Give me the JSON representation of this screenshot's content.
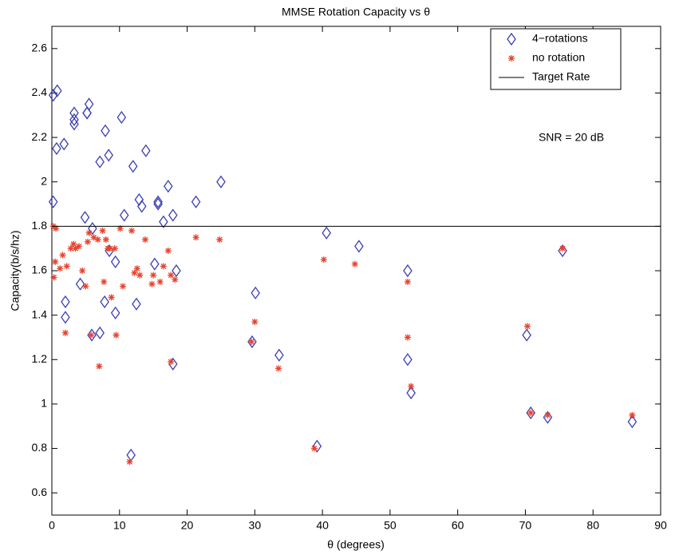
{
  "chart_data": {
    "type": "scatter",
    "title": "MMSE Rotation Capacity vs θ",
    "x_label": "θ (degrees)",
    "y_label": "Capacity(b/s/hz)",
    "annotation": "SNR = 20 dB",
    "xlim": [
      0,
      90
    ],
    "xticks": [
      0,
      10,
      20,
      30,
      40,
      50,
      60,
      70,
      80,
      90
    ],
    "ylim": [
      0.5,
      2.7
    ],
    "yticks": [
      0.6,
      0.8,
      1,
      1.2,
      1.4,
      1.6,
      1.8,
      2,
      2.2,
      2.4,
      2.6
    ],
    "legend": "top-right",
    "series": [
      {
        "name": "4−rotations",
        "color": "#3b3fb3",
        "marker": "diamond",
        "x": [
          0.2,
          0.8,
          0.2,
          0.7,
          1.8,
          3.3,
          3.3,
          3.3,
          5.2,
          5.5,
          7.1,
          7.9,
          8.4,
          10.3,
          12.0,
          13.9,
          12.9,
          13.3,
          15.7,
          17.2,
          17.9,
          16.5,
          10.7,
          21.3,
          25.0,
          4.9,
          6.0,
          4.2,
          2.0,
          2.0,
          5.2,
          8.5,
          9.4,
          9.4,
          7.1,
          7.8,
          5.9,
          12.5,
          15.2,
          15.7,
          18.4,
          17.9,
          11.7,
          30.1,
          29.6,
          33.6,
          40.6,
          45.4,
          39.2,
          52.6,
          52.6,
          53.1,
          70.2,
          70.8,
          73.3,
          75.5,
          85.8
        ],
        "values": [
          2.39,
          2.41,
          1.91,
          2.15,
          2.17,
          2.31,
          2.28,
          2.26,
          2.31,
          2.35,
          2.09,
          2.23,
          2.12,
          2.29,
          2.07,
          2.14,
          1.92,
          1.89,
          1.9,
          1.98,
          1.85,
          1.82,
          1.85,
          1.91,
          2.0,
          1.84,
          1.79,
          1.54,
          1.46,
          1.39,
          2.31,
          1.69,
          1.64,
          1.41,
          1.32,
          1.46,
          1.31,
          1.45,
          1.63,
          1.91,
          1.6,
          1.18,
          0.77,
          1.5,
          1.28,
          1.22,
          1.77,
          1.71,
          0.81,
          1.6,
          1.2,
          1.05,
          1.31,
          0.96,
          0.94,
          1.69,
          0.92
        ]
      },
      {
        "name": "no rotation",
        "color": "#e8432d",
        "marker": "star",
        "x": [
          0.2,
          0.6,
          0.3,
          0.5,
          1.2,
          1.6,
          2.0,
          2.2,
          2.8,
          3.2,
          3.5,
          4.0,
          4.5,
          5.0,
          5.3,
          5.5,
          5.8,
          6.2,
          6.8,
          7.0,
          7.5,
          7.7,
          8.0,
          8.3,
          8.8,
          9.3,
          9.5,
          10.1,
          10.5,
          11.8,
          12.2,
          12.6,
          13.0,
          13.8,
          14.8,
          15.0,
          16.0,
          16.5,
          17.2,
          17.6,
          18.2,
          17.6,
          11.5,
          21.3,
          24.8,
          29.5,
          30.0,
          33.5,
          38.8,
          40.2,
          44.8,
          52.6,
          52.6,
          53.1,
          70.3,
          70.8,
          73.3,
          75.5,
          85.8,
          8.5
        ],
        "values": [
          1.8,
          1.79,
          1.57,
          1.64,
          1.61,
          1.67,
          1.32,
          1.62,
          1.7,
          1.72,
          1.7,
          1.71,
          1.6,
          1.53,
          1.73,
          1.77,
          1.31,
          1.75,
          1.74,
          1.17,
          1.78,
          1.55,
          1.74,
          1.7,
          1.48,
          1.7,
          1.31,
          1.79,
          1.53,
          1.78,
          1.59,
          1.61,
          1.58,
          1.74,
          1.54,
          1.58,
          1.55,
          1.62,
          1.69,
          1.58,
          1.56,
          1.19,
          0.74,
          1.75,
          1.74,
          1.28,
          1.37,
          1.16,
          0.8,
          1.65,
          1.63,
          1.55,
          1.3,
          1.08,
          1.35,
          0.96,
          0.95,
          1.7,
          0.95,
          1.7
        ]
      },
      {
        "name": "Target Rate",
        "color": "#000000",
        "marker": "line",
        "x": [
          0,
          90
        ],
        "values": [
          1.8,
          1.8
        ]
      }
    ]
  }
}
